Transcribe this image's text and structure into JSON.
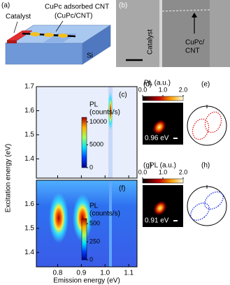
{
  "panel_a": {
    "label": "(a)",
    "catalyst": "Catalyst",
    "cnt_label": "CuPc adsorbed CNT",
    "cnt_abbrev": "(CuPc/CNT)",
    "substrate": "Si"
  },
  "panel_b": {
    "label": "(b)",
    "catalyst": "Catalyst",
    "cnt_line1": "CuPc/",
    "cnt_line2": "CNT"
  },
  "pl_maps": {
    "ylabel": "Excitation energy (eV)",
    "xlabel": "Emission energy (eV)",
    "xlim": [
      0.71,
      1.135
    ],
    "xticks": [
      0.8,
      0.9,
      {
        "value": 1.0,
        "label": "1.0"
      },
      1.1
    ],
    "panels": [
      {
        "label": "(c)",
        "ylim": [
          1.32,
          1.7
        ],
        "yticks": [
          1.4,
          1.5,
          1.6,
          1.7
        ],
        "colorbar": {
          "title": "PL",
          "unit": "(counts/s)",
          "lim": [
            0,
            11000
          ],
          "ticks": [
            0,
            5000,
            10000
          ]
        }
      },
      {
        "label": "(f)",
        "ylim": [
          1.34,
          1.7
        ],
        "yticks": [
          1.4,
          1.5,
          1.6
        ],
        "colorbar": {
          "title": "PL",
          "unit": "(counts/s)",
          "lim": [
            0,
            570
          ],
          "ticks": [
            0,
            250,
            500
          ]
        }
      }
    ]
  },
  "images": [
    {
      "label": "(d)",
      "colorbar_title": "PL (a.u.)",
      "ticks": [
        {
          "value": 0,
          "label": "0.0"
        },
        {
          "value": 1,
          "label": "1.0"
        },
        {
          "value": 2,
          "label": "2.0"
        }
      ],
      "energy": "0.96 eV",
      "polar_label": "(e)"
    },
    {
      "label": "(g)",
      "colorbar_title": "PL (a.u.)",
      "ticks": [
        {
          "value": 0,
          "label": "0.0"
        },
        {
          "value": 1,
          "label": "1.0"
        },
        {
          "value": 2,
          "label": "2.0"
        }
      ],
      "energy": "0.91 eV",
      "polar_label": "(h)"
    }
  ]
}
